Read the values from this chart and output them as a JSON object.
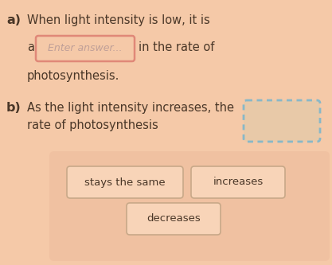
{
  "bg_color": "#f5c9a8",
  "text_color": "#4a3728",
  "label_a_bold": "a)",
  "label_b_bold": "b)",
  "line1_a": "When light intensity is low, it is",
  "line2a_prefix": "a",
  "line2a_input": "Enter answer...",
  "line2a_suffix": "in the rate of",
  "line3a": "photosynthesis.",
  "line1_b": "As the light intensity increases, the",
  "line2_b": "rate of photosynthesis",
  "input_box_border": "#e08878",
  "input_placeholder_color": "#c0a098",
  "drop_target_border": "#88b8c8",
  "drop_target_fill": "#e8c9a8",
  "option_box_fill": "#f8d4b8",
  "option_box_border": "#c8a888",
  "options_panel_fill": "#f0c0a0",
  "figw": 4.17,
  "figh": 3.33,
  "dpi": 100
}
